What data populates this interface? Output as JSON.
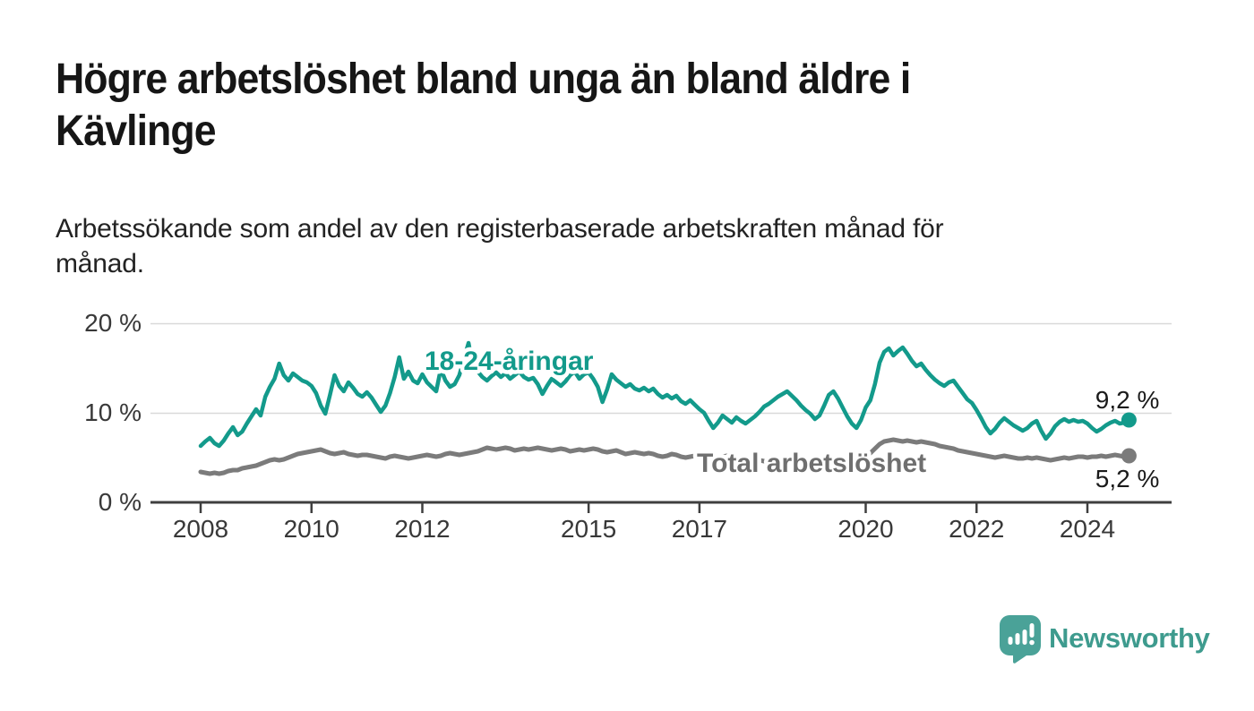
{
  "header": {
    "title_lines": [
      "Högre arbetslöshet bland unga än bland äldre i",
      "Kävlinge"
    ],
    "subtitle_lines": [
      "Arbetssökande som andel av den registerbaserade arbetskraften månad för",
      "månad."
    ]
  },
  "branding": {
    "name": "Newsworthy",
    "icon": "newsworthy-speech-bubble-bar-chart-icon",
    "icon_color": "#4aa298",
    "text_color": "#3e9b8e"
  },
  "colors": {
    "young_line": "#139a8b",
    "total_line": "#7b7b7b",
    "total_label": "#6f6f6f",
    "grid": "#d9d9d9",
    "axis": "#3f3f3f",
    "tick_text": "#383838",
    "value_text": "#1b1b1b"
  },
  "chart_data": {
    "type": "line",
    "unit": "%",
    "frequency": "monthly",
    "x_start": "2008-01",
    "x_end": "2024-10",
    "ylim": [
      0,
      20
    ],
    "grid": "horizontal",
    "y_ticks": [
      {
        "value": 0,
        "label": "0 %"
      },
      {
        "value": 10,
        "label": "10 %"
      },
      {
        "value": 20,
        "label": "20 %"
      }
    ],
    "x_ticks": [
      {
        "value": 2008,
        "label": "2008"
      },
      {
        "value": 2010,
        "label": "2010"
      },
      {
        "value": 2012,
        "label": "2012"
      },
      {
        "value": 2015,
        "label": "2015"
      },
      {
        "value": 2017,
        "label": "2017"
      },
      {
        "value": 2020,
        "label": "2020"
      },
      {
        "value": 2022,
        "label": "2022"
      },
      {
        "value": 2024,
        "label": "2024"
      }
    ],
    "series": [
      {
        "name": "18-24-åringar",
        "color": "#139a8b",
        "label_color": "#139a8b",
        "end_label": "9,2 %",
        "end_value": 9.2,
        "values": [
          6.3,
          6.8,
          7.2,
          6.6,
          6.3,
          6.9,
          7.7,
          8.4,
          7.5,
          7.9,
          8.8,
          9.6,
          10.4,
          9.7,
          11.8,
          12.9,
          13.8,
          15.5,
          14.2,
          13.6,
          14.4,
          14.0,
          13.6,
          13.4,
          13.0,
          12.2,
          10.8,
          9.9,
          12.0,
          14.2,
          13.0,
          12.4,
          13.4,
          12.8,
          12.1,
          11.8,
          12.3,
          11.7,
          10.9,
          10.1,
          10.8,
          12.2,
          14.0,
          16.2,
          13.8,
          14.6,
          13.6,
          13.3,
          14.3,
          13.4,
          12.9,
          12.4,
          14.9,
          13.6,
          12.9,
          13.2,
          14.2,
          16.0,
          17.8,
          15.0,
          14.6,
          14.0,
          13.6,
          14.1,
          14.5,
          14.0,
          14.4,
          13.8,
          14.2,
          14.6,
          14.0,
          13.7,
          13.9,
          13.2,
          12.1,
          13.0,
          13.8,
          13.4,
          13.0,
          13.5,
          14.2,
          14.6,
          13.8,
          14.3,
          14.5,
          13.8,
          12.9,
          11.2,
          12.6,
          14.3,
          13.7,
          13.3,
          12.9,
          13.2,
          12.7,
          12.5,
          12.8,
          12.4,
          12.7,
          12.1,
          11.7,
          12.0,
          11.6,
          11.9,
          11.3,
          11.0,
          11.4,
          10.9,
          10.4,
          10.0,
          9.1,
          8.3,
          8.9,
          9.7,
          9.3,
          8.9,
          9.5,
          9.1,
          8.8,
          9.2,
          9.6,
          10.1,
          10.7,
          11.0,
          11.4,
          11.8,
          12.1,
          12.4,
          11.9,
          11.4,
          10.8,
          10.3,
          9.9,
          9.3,
          9.7,
          10.8,
          12.0,
          12.4,
          11.6,
          10.6,
          9.6,
          8.8,
          8.3,
          9.2,
          10.6,
          11.4,
          13.2,
          15.6,
          16.8,
          17.2,
          16.4,
          16.9,
          17.3,
          16.6,
          15.8,
          15.2,
          15.5,
          14.8,
          14.2,
          13.7,
          13.3,
          13.0,
          13.4,
          13.6,
          12.9,
          12.2,
          11.5,
          11.1,
          10.3,
          9.4,
          8.4,
          7.7,
          8.2,
          8.9,
          9.4,
          9.0,
          8.6,
          8.3,
          8.0,
          8.3,
          8.8,
          9.1,
          8.0,
          7.1,
          7.7,
          8.5,
          9.0,
          9.3,
          9.0,
          9.2,
          9.0,
          9.1,
          8.8,
          8.3,
          7.9,
          8.2,
          8.6,
          8.9,
          9.1,
          8.8,
          8.9,
          9.2
        ]
      },
      {
        "name": "Total arbetslöshet",
        "color": "#7b7b7b",
        "label_color": "#6f6f6f",
        "end_label": "5,2 %",
        "end_value": 5.2,
        "values": [
          3.4,
          3.3,
          3.2,
          3.3,
          3.2,
          3.3,
          3.5,
          3.6,
          3.6,
          3.8,
          3.9,
          4.0,
          4.1,
          4.3,
          4.5,
          4.7,
          4.8,
          4.7,
          4.8,
          5.0,
          5.2,
          5.4,
          5.5,
          5.6,
          5.7,
          5.8,
          5.9,
          5.7,
          5.5,
          5.4,
          5.5,
          5.6,
          5.4,
          5.3,
          5.2,
          5.3,
          5.3,
          5.2,
          5.1,
          5.0,
          4.9,
          5.1,
          5.2,
          5.1,
          5.0,
          4.9,
          5.0,
          5.1,
          5.2,
          5.3,
          5.2,
          5.1,
          5.2,
          5.4,
          5.5,
          5.4,
          5.3,
          5.4,
          5.5,
          5.6,
          5.7,
          5.9,
          6.1,
          6.0,
          5.9,
          6.0,
          6.1,
          6.0,
          5.8,
          5.9,
          6.0,
          5.9,
          6.0,
          6.1,
          6.0,
          5.9,
          5.8,
          5.9,
          6.0,
          5.9,
          5.7,
          5.8,
          5.9,
          5.8,
          5.9,
          6.0,
          5.9,
          5.7,
          5.6,
          5.7,
          5.8,
          5.6,
          5.4,
          5.5,
          5.6,
          5.5,
          5.4,
          5.5,
          5.4,
          5.2,
          5.1,
          5.2,
          5.4,
          5.3,
          5.1,
          5.0,
          5.1,
          5.2,
          5.1,
          5.0,
          4.9,
          4.8,
          4.9,
          5.1,
          5.2,
          5.0,
          4.8,
          4.7,
          4.8,
          4.9,
          4.8,
          4.7,
          4.6,
          4.5,
          4.6,
          4.7,
          4.8,
          4.7,
          4.5,
          4.4,
          4.5,
          4.6,
          4.5,
          4.4,
          4.5,
          4.6,
          4.7,
          4.6,
          4.7,
          4.8,
          4.6,
          4.5,
          4.6,
          4.8,
          5.1,
          5.5,
          6.0,
          6.5,
          6.8,
          6.9,
          7.0,
          6.9,
          6.8,
          6.9,
          6.8,
          6.7,
          6.8,
          6.7,
          6.6,
          6.5,
          6.3,
          6.2,
          6.1,
          6.0,
          5.8,
          5.7,
          5.6,
          5.5,
          5.4,
          5.3,
          5.2,
          5.1,
          5.0,
          5.1,
          5.2,
          5.1,
          5.0,
          4.9,
          4.9,
          5.0,
          4.9,
          5.0,
          4.9,
          4.8,
          4.7,
          4.8,
          4.9,
          5.0,
          4.9,
          5.0,
          5.1,
          5.1,
          5.0,
          5.1,
          5.1,
          5.2,
          5.1,
          5.2,
          5.3,
          5.2,
          5.1,
          5.2
        ]
      }
    ]
  }
}
